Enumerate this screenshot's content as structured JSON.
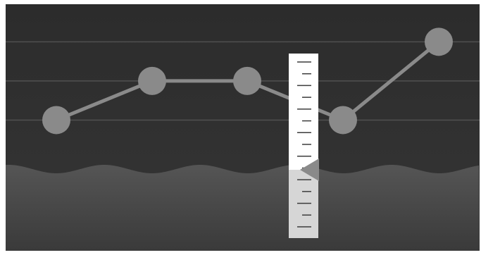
{
  "colors": {
    "sky_top": "#2c2c2c",
    "sky_bottom": "#353535",
    "ground_top": "#555555",
    "ground_bottom": "#3a3a3a",
    "guide_line": "#505050",
    "series": "#8a8a8a",
    "gauge_face": "#ffffff",
    "gauge_lower": "#d6d6d6",
    "gauge_tick": "#3c3c3c",
    "pointer": "#8a8a8a"
  },
  "chart_data": {
    "type": "line",
    "x": [
      1,
      2,
      3,
      4,
      5
    ],
    "series": [
      {
        "values": [
          1,
          2,
          2,
          1,
          3
        ]
      }
    ],
    "ylim": [
      0,
      3.6
    ]
  },
  "gauge": {
    "tick_count": 15,
    "pointer_level": 0.37
  }
}
